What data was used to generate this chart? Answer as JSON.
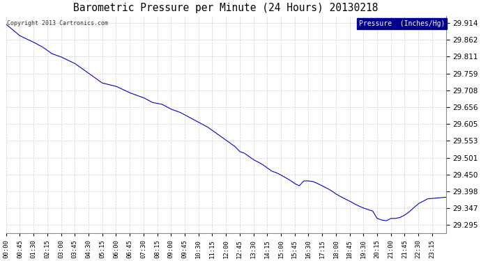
{
  "title": "Barometric Pressure per Minute (24 Hours) 20130218",
  "copyright": "Copyright 2013 Cartronics.com",
  "legend_label": "Pressure  (Inches/Hg)",
  "background_color": "#ffffff",
  "plot_bg_color": "#ffffff",
  "grid_color": "#cccccc",
  "line_color": "#0000cc",
  "legend_bg": "#00008b",
  "legend_fg": "#ffffff",
  "yticks": [
    29.295,
    29.347,
    29.398,
    29.45,
    29.501,
    29.553,
    29.605,
    29.656,
    29.708,
    29.759,
    29.811,
    29.862,
    29.914
  ],
  "ymin": 29.27,
  "ymax": 29.935,
  "xtick_labels": [
    "00:00",
    "00:45",
    "01:30",
    "02:15",
    "03:00",
    "03:45",
    "04:30",
    "05:15",
    "06:00",
    "06:45",
    "07:30",
    "08:15",
    "09:00",
    "09:45",
    "10:30",
    "11:15",
    "12:00",
    "12:45",
    "13:30",
    "14:15",
    "15:00",
    "15:45",
    "16:30",
    "17:15",
    "18:00",
    "18:45",
    "19:30",
    "20:15",
    "21:00",
    "21:45",
    "22:30",
    "23:15"
  ],
  "pressure_keypoints": [
    [
      0,
      29.91
    ],
    [
      45,
      29.875
    ],
    [
      90,
      29.855
    ],
    [
      120,
      29.84
    ],
    [
      150,
      29.82
    ],
    [
      180,
      29.81
    ],
    [
      225,
      29.79
    ],
    [
      270,
      29.76
    ],
    [
      315,
      29.73
    ],
    [
      360,
      29.72
    ],
    [
      405,
      29.7
    ],
    [
      450,
      29.685
    ],
    [
      480,
      29.67
    ],
    [
      510,
      29.665
    ],
    [
      540,
      29.65
    ],
    [
      570,
      29.64
    ],
    [
      600,
      29.625
    ],
    [
      630,
      29.61
    ],
    [
      660,
      29.595
    ],
    [
      690,
      29.575
    ],
    [
      720,
      29.555
    ],
    [
      735,
      29.545
    ],
    [
      750,
      29.535
    ],
    [
      765,
      29.52
    ],
    [
      780,
      29.515
    ],
    [
      795,
      29.505
    ],
    [
      810,
      29.495
    ],
    [
      825,
      29.488
    ],
    [
      840,
      29.48
    ],
    [
      855,
      29.47
    ],
    [
      870,
      29.46
    ],
    [
      885,
      29.455
    ],
    [
      900,
      29.448
    ],
    [
      915,
      29.44
    ],
    [
      930,
      29.432
    ],
    [
      945,
      29.422
    ],
    [
      960,
      29.415
    ],
    [
      975,
      29.43
    ],
    [
      990,
      29.43
    ],
    [
      1005,
      29.428
    ],
    [
      1020,
      29.422
    ],
    [
      1035,
      29.415
    ],
    [
      1050,
      29.408
    ],
    [
      1065,
      29.4
    ],
    [
      1080,
      29.39
    ],
    [
      1095,
      29.382
    ],
    [
      1110,
      29.375
    ],
    [
      1125,
      29.368
    ],
    [
      1140,
      29.36
    ],
    [
      1155,
      29.353
    ],
    [
      1170,
      29.347
    ],
    [
      1185,
      29.342
    ],
    [
      1200,
      29.338
    ],
    [
      1215,
      29.315
    ],
    [
      1230,
      29.31
    ],
    [
      1245,
      29.308
    ],
    [
      1260,
      29.315
    ],
    [
      1275,
      29.315
    ],
    [
      1290,
      29.318
    ],
    [
      1305,
      29.325
    ],
    [
      1320,
      29.335
    ],
    [
      1335,
      29.348
    ],
    [
      1350,
      29.36
    ],
    [
      1380,
      29.375
    ],
    [
      1440,
      29.38
    ]
  ]
}
